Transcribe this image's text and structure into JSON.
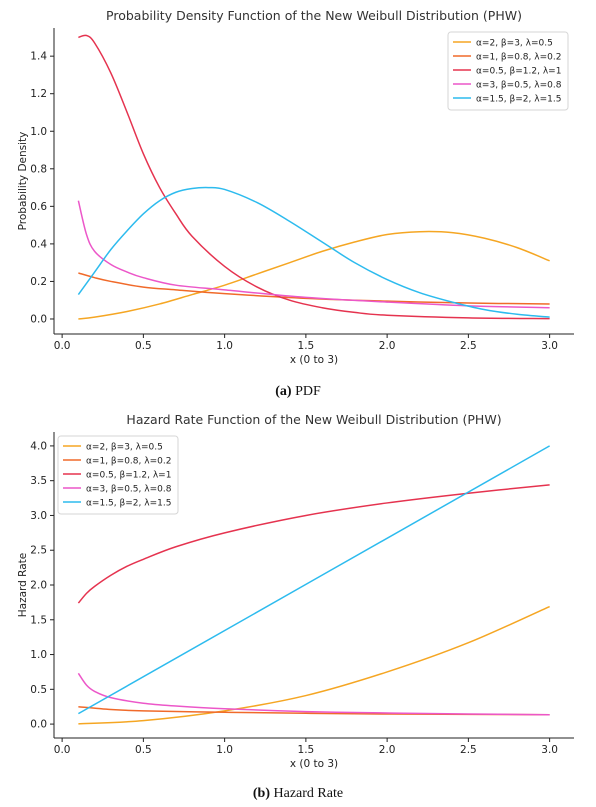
{
  "captions": [
    {
      "tag": "(a)",
      "text": "PDF"
    },
    {
      "tag": "(b)",
      "text": "Hazard Rate"
    }
  ],
  "chart_data": [
    {
      "type": "line",
      "title": "Probability Density Function of the New Weibull Distribution (PHW)",
      "xlabel": "x (0 to 3)",
      "ylabel": "Probability Density",
      "xlim": [
        -0.05,
        3.15
      ],
      "ylim": [
        -0.08,
        1.55
      ],
      "xticks": [
        0.0,
        0.5,
        1.0,
        1.5,
        2.0,
        2.5,
        3.0
      ],
      "xtick_labels": [
        "0.0",
        "0.5",
        "1.0",
        "1.5",
        "2.0",
        "2.5",
        "3.0"
      ],
      "yticks": [
        0.0,
        0.2,
        0.4,
        0.6,
        0.8,
        1.0,
        1.2,
        1.4
      ],
      "ytick_labels": [
        "0.0",
        "0.2",
        "0.4",
        "0.6",
        "0.8",
        "1.0",
        "1.2",
        "1.4"
      ],
      "grid": false,
      "legend_position": "top-right",
      "series": [
        {
          "name": "α=2, β=3, λ=0.5",
          "color": "#f5a623",
          "x": [
            0.1,
            0.2,
            0.4,
            0.6,
            0.8,
            1.0,
            1.2,
            1.4,
            1.6,
            1.8,
            2.0,
            2.2,
            2.4,
            2.6,
            2.8,
            3.0
          ],
          "y": [
            0.0,
            0.01,
            0.04,
            0.08,
            0.13,
            0.18,
            0.24,
            0.3,
            0.36,
            0.41,
            0.45,
            0.465,
            0.46,
            0.43,
            0.38,
            0.31
          ]
        },
        {
          "name": "α=1, β=0.8, λ=0.2",
          "color": "#f06a2a",
          "x": [
            0.1,
            0.2,
            0.3,
            0.5,
            0.7,
            1.0,
            1.5,
            2.0,
            2.5,
            3.0
          ],
          "y": [
            0.245,
            0.22,
            0.2,
            0.17,
            0.155,
            0.135,
            0.11,
            0.095,
            0.085,
            0.08
          ]
        },
        {
          "name": "α=0.5, β=1.2, λ=1",
          "color": "#e5334f",
          "x": [
            0.1,
            0.15,
            0.2,
            0.3,
            0.4,
            0.5,
            0.6,
            0.7,
            0.8,
            1.0,
            1.2,
            1.4,
            1.6,
            1.8,
            2.0,
            2.5,
            3.0
          ],
          "y": [
            1.5,
            1.51,
            1.47,
            1.31,
            1.1,
            0.88,
            0.7,
            0.56,
            0.44,
            0.28,
            0.17,
            0.1,
            0.06,
            0.035,
            0.02,
            0.006,
            0.002
          ]
        },
        {
          "name": "α=3, β=0.5, λ=0.8",
          "color": "#ec57c9",
          "x": [
            0.1,
            0.15,
            0.2,
            0.3,
            0.4,
            0.5,
            0.7,
            1.0,
            1.5,
            2.0,
            2.5,
            3.0
          ],
          "y": [
            0.63,
            0.45,
            0.36,
            0.29,
            0.25,
            0.22,
            0.18,
            0.155,
            0.115,
            0.09,
            0.07,
            0.06
          ]
        },
        {
          "name": "α=1.5, β=2, λ=1.5",
          "color": "#2dbbee",
          "x": [
            0.1,
            0.2,
            0.3,
            0.4,
            0.5,
            0.6,
            0.7,
            0.8,
            0.9,
            1.0,
            1.2,
            1.4,
            1.6,
            1.8,
            2.0,
            2.2,
            2.4,
            2.6,
            2.8,
            3.0
          ],
          "y": [
            0.13,
            0.25,
            0.37,
            0.47,
            0.56,
            0.63,
            0.675,
            0.695,
            0.7,
            0.69,
            0.62,
            0.52,
            0.41,
            0.3,
            0.21,
            0.14,
            0.09,
            0.05,
            0.025,
            0.01
          ]
        }
      ]
    },
    {
      "type": "line",
      "title": "Hazard Rate Function of the New Weibull Distribution (PHW)",
      "xlabel": "x (0 to 3)",
      "ylabel": "Hazard Rate",
      "xlim": [
        -0.05,
        3.15
      ],
      "ylim": [
        -0.2,
        4.2
      ],
      "xticks": [
        0.0,
        0.5,
        1.0,
        1.5,
        2.0,
        2.5,
        3.0
      ],
      "xtick_labels": [
        "0.0",
        "0.5",
        "1.0",
        "1.5",
        "2.0",
        "2.5",
        "3.0"
      ],
      "yticks": [
        0.0,
        0.5,
        1.0,
        1.5,
        2.0,
        2.5,
        3.0,
        3.5,
        4.0
      ],
      "ytick_labels": [
        "0.0",
        "0.5",
        "1.0",
        "1.5",
        "2.0",
        "2.5",
        "3.0",
        "3.5",
        "4.0"
      ],
      "grid": false,
      "legend_position": "top-left",
      "series": [
        {
          "name": "α=2, β=3, λ=0.5",
          "color": "#f5a623",
          "x": [
            0.1,
            0.5,
            1.0,
            1.5,
            2.0,
            2.5,
            3.0
          ],
          "y": [
            0.003,
            0.05,
            0.19,
            0.41,
            0.75,
            1.17,
            1.69
          ]
        },
        {
          "name": "α=1, β=0.8, λ=0.2",
          "color": "#f06a2a",
          "x": [
            0.1,
            0.3,
            0.5,
            1.0,
            1.5,
            2.0,
            2.5,
            3.0
          ],
          "y": [
            0.25,
            0.21,
            0.19,
            0.17,
            0.155,
            0.145,
            0.14,
            0.135
          ]
        },
        {
          "name": "α=0.5, β=1.2, λ=1",
          "color": "#e5334f",
          "x": [
            0.1,
            0.15,
            0.2,
            0.3,
            0.4,
            0.5,
            0.7,
            1.0,
            1.5,
            2.0,
            2.5,
            3.0
          ],
          "y": [
            1.74,
            1.88,
            1.98,
            2.14,
            2.27,
            2.37,
            2.55,
            2.75,
            3.0,
            3.18,
            3.32,
            3.44
          ]
        },
        {
          "name": "α=3, β=0.5, λ=0.8",
          "color": "#ec57c9",
          "x": [
            0.1,
            0.15,
            0.2,
            0.3,
            0.5,
            0.7,
            1.0,
            1.5,
            2.0,
            2.5,
            3.0
          ],
          "y": [
            0.73,
            0.56,
            0.47,
            0.38,
            0.3,
            0.26,
            0.22,
            0.18,
            0.16,
            0.145,
            0.135
          ]
        },
        {
          "name": "α=1.5, β=2, λ=1.5",
          "color": "#2dbbee",
          "x": [
            0.1,
            3.0
          ],
          "y": [
            0.15,
            4.0
          ]
        }
      ]
    }
  ]
}
